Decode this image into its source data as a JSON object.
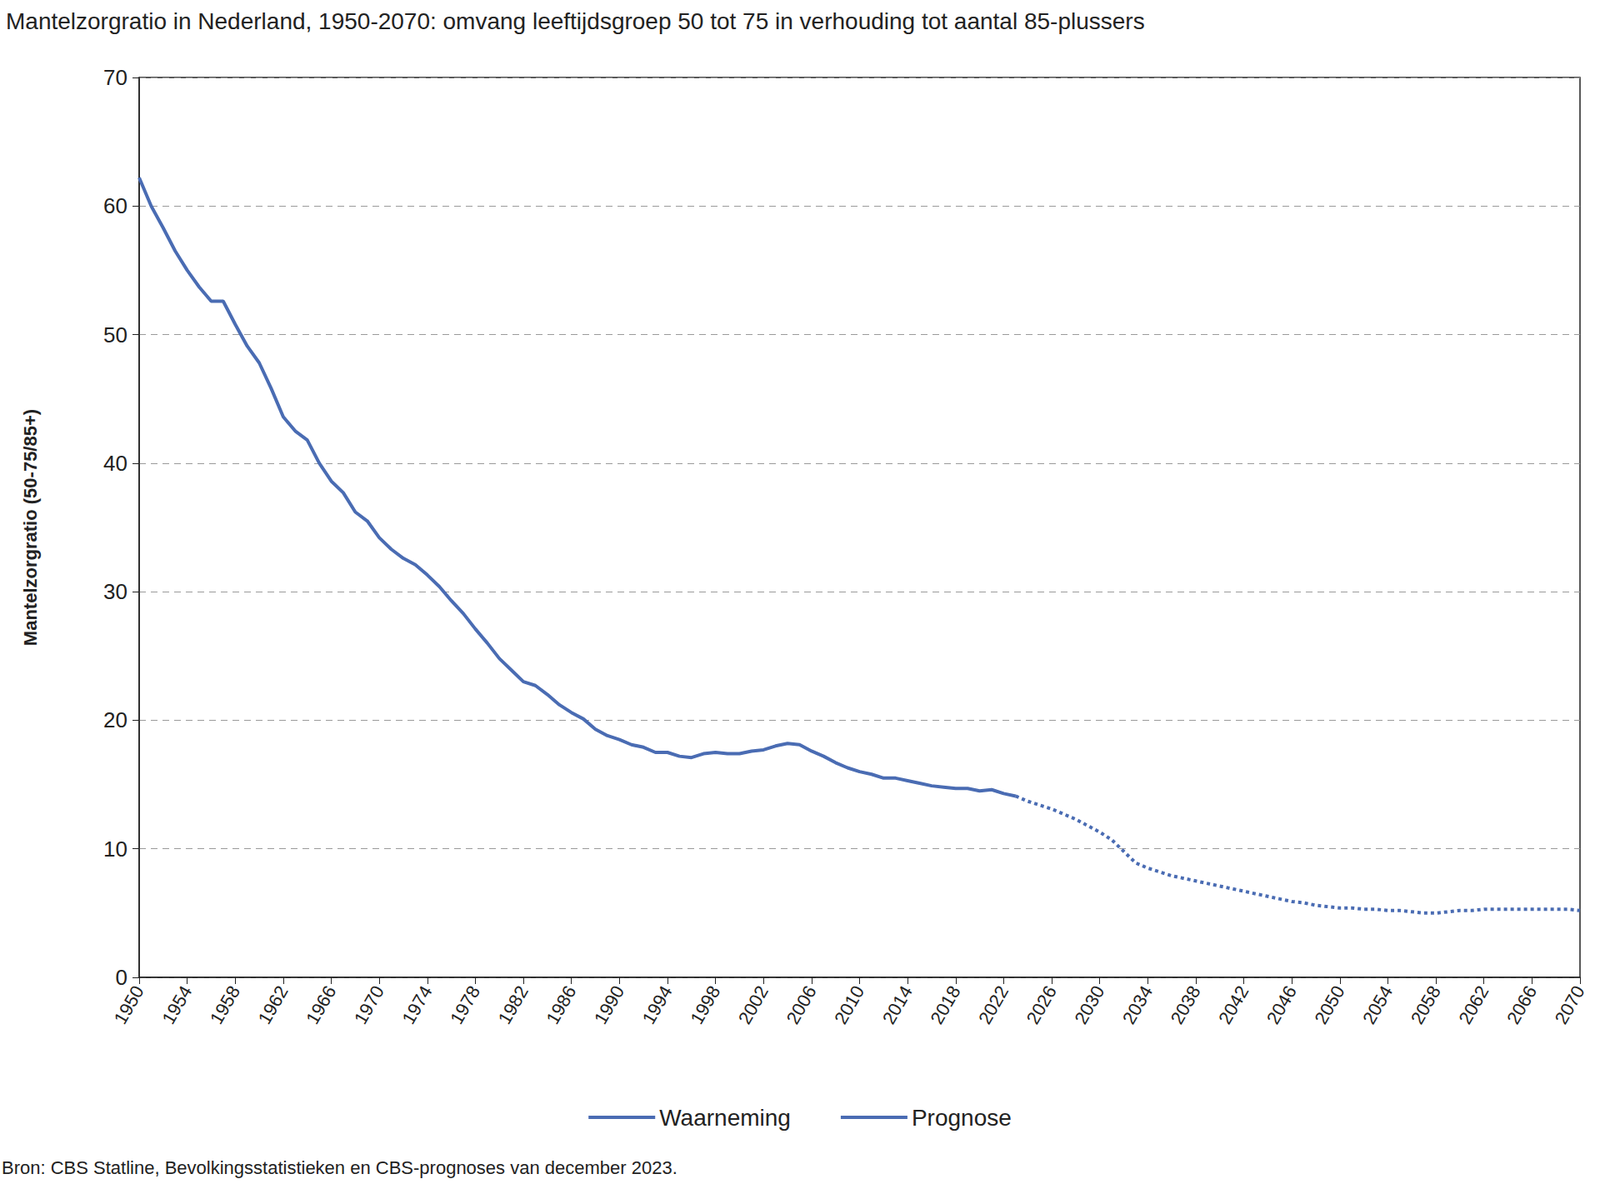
{
  "chart_data": {
    "type": "line",
    "title": "Mantelzorgratio in Nederland, 1950-2070: omvang leeftijdsgroep 50 tot 75 in verhouding tot aantal 85-plussers",
    "y_label": "Mantelzorgratio (50-75/85+)",
    "note": "Bron: CBS Statline, Bevolkingsstatistieken en CBS-prognoses van december 2023.",
    "xlim": [
      1950,
      2070
    ],
    "xticks": [
      1950,
      1954,
      1958,
      1962,
      1966,
      1970,
      1974,
      1978,
      1982,
      1986,
      1990,
      1994,
      1998,
      2002,
      2006,
      2010,
      2014,
      2018,
      2022,
      2026,
      2030,
      2034,
      2038,
      2042,
      2046,
      2050,
      2054,
      2058,
      2062,
      2066,
      2070
    ],
    "ylim": [
      0,
      70
    ],
    "yticks": [
      0,
      10,
      20,
      30,
      40,
      50,
      60,
      70
    ],
    "grid": true,
    "legend": "bottom",
    "series": [
      {
        "name": "Waarneming",
        "color": "#4a6cb3",
        "line_style": "solid",
        "x": [
          1950,
          1951,
          1952,
          1953,
          1954,
          1955,
          1956,
          1957,
          1958,
          1959,
          1960,
          1961,
          1962,
          1963,
          1964,
          1965,
          1966,
          1967,
          1968,
          1969,
          1970,
          1971,
          1972,
          1973,
          1974,
          1975,
          1976,
          1977,
          1978,
          1979,
          1980,
          1981,
          1982,
          1983,
          1984,
          1985,
          1986,
          1987,
          1988,
          1989,
          1990,
          1991,
          1992,
          1993,
          1994,
          1995,
          1996,
          1997,
          1998,
          1999,
          2000,
          2001,
          2002,
          2003,
          2004,
          2005,
          2006,
          2007,
          2008,
          2009,
          2010,
          2011,
          2012,
          2013,
          2014,
          2015,
          2016,
          2017,
          2018,
          2019,
          2020,
          2021,
          2022,
          2023
        ],
        "values": [
          62.2,
          60.0,
          58.3,
          56.5,
          55.0,
          53.7,
          52.6,
          52.6,
          50.8,
          49.1,
          47.8,
          45.8,
          43.6,
          42.5,
          41.8,
          40.0,
          38.6,
          37.7,
          36.2,
          35.5,
          34.2,
          33.3,
          32.6,
          32.1,
          31.3,
          30.4,
          29.3,
          28.3,
          27.1,
          26.0,
          24.8,
          23.9,
          23.0,
          22.7,
          22.0,
          21.2,
          20.6,
          20.1,
          19.3,
          18.8,
          18.5,
          18.1,
          17.9,
          17.5,
          17.5,
          17.2,
          17.1,
          17.4,
          17.5,
          17.4,
          17.4,
          17.6,
          17.7,
          18.0,
          18.2,
          18.1,
          17.6,
          17.2,
          16.7,
          16.3,
          16.0,
          15.8,
          15.5,
          15.5,
          15.3,
          15.1,
          14.9,
          14.8,
          14.7,
          14.7,
          14.5,
          14.6,
          14.3,
          14.1
        ]
      },
      {
        "name": "Prognose",
        "color": "#4a6cb3",
        "line_style": "dotted",
        "x": [
          2023,
          2024,
          2025,
          2026,
          2027,
          2028,
          2029,
          2030,
          2031,
          2032,
          2033,
          2034,
          2035,
          2036,
          2037,
          2038,
          2039,
          2040,
          2041,
          2042,
          2043,
          2044,
          2045,
          2046,
          2047,
          2048,
          2049,
          2050,
          2051,
          2052,
          2053,
          2054,
          2055,
          2056,
          2057,
          2058,
          2059,
          2060,
          2061,
          2062,
          2063,
          2064,
          2065,
          2066,
          2067,
          2068,
          2069,
          2070
        ],
        "values": [
          14.1,
          13.7,
          13.4,
          13.1,
          12.7,
          12.3,
          11.8,
          11.3,
          10.7,
          9.8,
          8.9,
          8.5,
          8.2,
          7.9,
          7.7,
          7.5,
          7.3,
          7.1,
          6.9,
          6.7,
          6.5,
          6.3,
          6.1,
          5.9,
          5.8,
          5.6,
          5.5,
          5.4,
          5.4,
          5.3,
          5.3,
          5.2,
          5.2,
          5.1,
          5.0,
          5.0,
          5.1,
          5.2,
          5.2,
          5.3,
          5.3,
          5.3,
          5.3,
          5.3,
          5.3,
          5.3,
          5.3,
          5.2
        ]
      }
    ]
  }
}
